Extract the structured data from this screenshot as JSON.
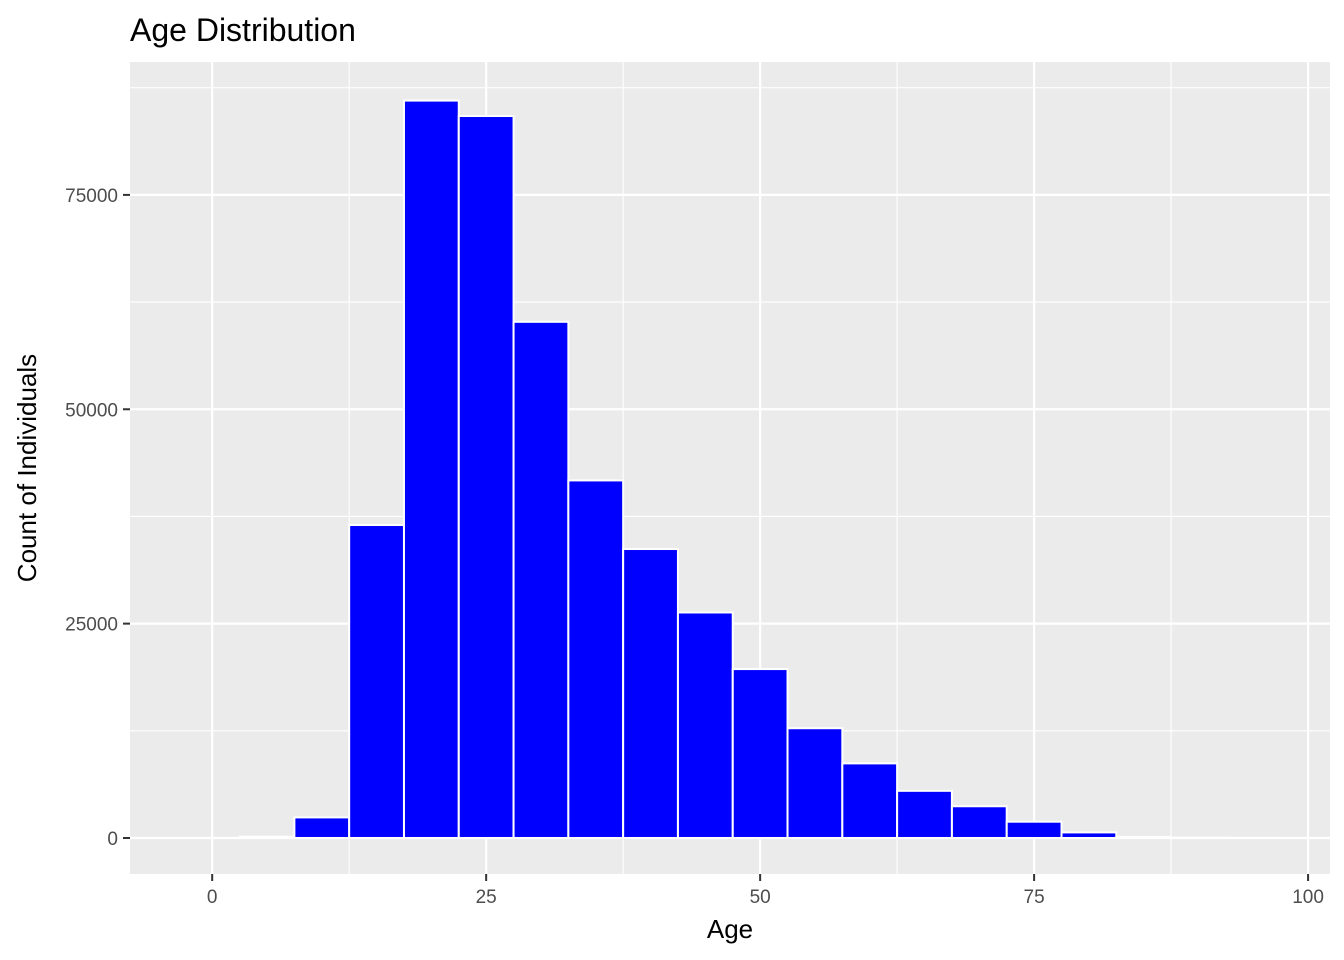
{
  "chart_data": {
    "type": "bar",
    "title": "Age Distribution",
    "xlabel": "Age",
    "ylabel": "Count of Individuals",
    "bin_width": 5,
    "bins": [
      {
        "start": -2.5,
        "end": 2.5,
        "count": 0
      },
      {
        "start": 2.5,
        "end": 7.5,
        "count": 150
      },
      {
        "start": 7.5,
        "end": 12.5,
        "count": 2400
      },
      {
        "start": 12.5,
        "end": 17.5,
        "count": 36500
      },
      {
        "start": 17.5,
        "end": 22.5,
        "count": 86000
      },
      {
        "start": 22.5,
        "end": 27.5,
        "count": 84200
      },
      {
        "start": 27.5,
        "end": 32.5,
        "count": 60200
      },
      {
        "start": 32.5,
        "end": 37.5,
        "count": 41700
      },
      {
        "start": 37.5,
        "end": 42.5,
        "count": 33700
      },
      {
        "start": 42.5,
        "end": 47.5,
        "count": 26300
      },
      {
        "start": 47.5,
        "end": 52.5,
        "count": 19700
      },
      {
        "start": 52.5,
        "end": 57.5,
        "count": 12800
      },
      {
        "start": 57.5,
        "end": 62.5,
        "count": 8700
      },
      {
        "start": 62.5,
        "end": 67.5,
        "count": 5500
      },
      {
        "start": 67.5,
        "end": 72.5,
        "count": 3700
      },
      {
        "start": 72.5,
        "end": 77.5,
        "count": 1900
      },
      {
        "start": 77.5,
        "end": 82.5,
        "count": 650
      },
      {
        "start": 82.5,
        "end": 87.5,
        "count": 120
      },
      {
        "start": 87.5,
        "end": 92.5,
        "count": 30
      },
      {
        "start": 92.5,
        "end": 97.5,
        "count": 10
      }
    ],
    "xlim": [
      -7.5,
      102
    ],
    "ylim": [
      -4200,
      90500
    ],
    "x_ticks": [
      0,
      25,
      50,
      75,
      100
    ],
    "x_tick_labels": [
      "0",
      "25",
      "50",
      "75",
      "100"
    ],
    "y_ticks": [
      0,
      25000,
      50000,
      75000
    ],
    "y_tick_labels": [
      "0",
      "25000",
      "50000",
      "75000"
    ],
    "grid": true,
    "legend": "none",
    "colors": {
      "bar_fill": "#0000ff",
      "bar_outline": "#ffffff",
      "panel_background": "#ebebeb",
      "grid_line": "#ffffff"
    }
  }
}
